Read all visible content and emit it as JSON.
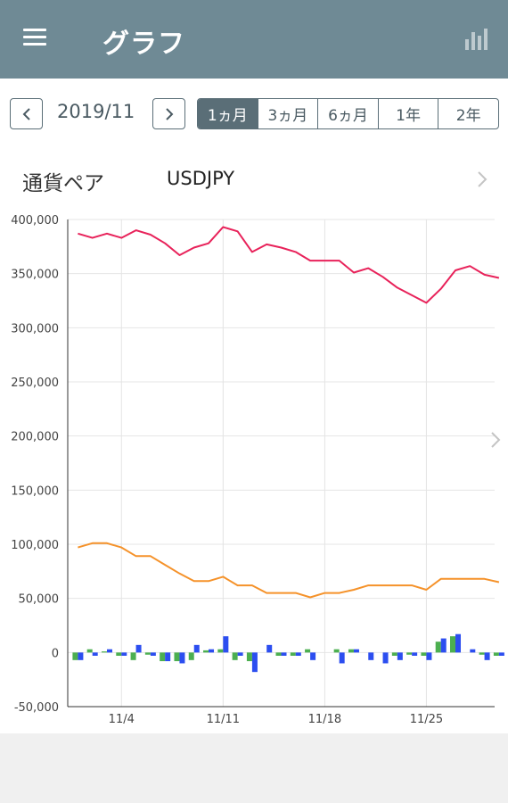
{
  "header": {
    "title": "グラフ",
    "menu_icon": "menu-icon",
    "chart_icon": "bar-chart-icon"
  },
  "nav": {
    "prev_icon": "chevron-left-icon",
    "next_icon": "chevron-right-icon",
    "month": "2019/11"
  },
  "periods": [
    {
      "label": "1ヵ月",
      "active": true
    },
    {
      "label": "3ヵ月",
      "active": false
    },
    {
      "label": "6ヵ月",
      "active": false
    },
    {
      "label": "1年",
      "active": false
    },
    {
      "label": "2年",
      "active": false
    }
  ],
  "pair": {
    "label": "通貨ペア",
    "value": "USDJPY"
  },
  "chart_data": {
    "type": "line",
    "ylim": [
      -50000,
      400000
    ],
    "yticks": [
      -50000,
      0,
      50000,
      100000,
      150000,
      200000,
      250000,
      300000,
      350000,
      400000
    ],
    "ytick_labels": [
      "-50,000",
      "0",
      "50,000",
      "100,000",
      "150,000",
      "200,000",
      "250,000",
      "300,000",
      "350,000",
      "400,000"
    ],
    "xlim": [
      0.3,
      29.7
    ],
    "xticks": [
      4,
      11,
      18,
      25
    ],
    "xtick_labels": [
      "11/4",
      "11/11",
      "11/18",
      "11/25"
    ],
    "grid": true,
    "colors": {
      "red": "#e8225a",
      "orange": "#f5922a",
      "green": "#4caf50",
      "blue": "#2c4ef0"
    },
    "series": [
      {
        "color": "red",
        "x": [
          1,
          2,
          3,
          4,
          5,
          6,
          7,
          8,
          9,
          10,
          11,
          12,
          13,
          14,
          15,
          16,
          17,
          18,
          19,
          20,
          21,
          22,
          23,
          24,
          25,
          26,
          27,
          28,
          29,
          30
        ],
        "values": [
          387000,
          383000,
          387000,
          383000,
          390000,
          386000,
          378000,
          367000,
          374000,
          378000,
          393000,
          389000,
          370000,
          377000,
          374000,
          370000,
          362000,
          362000,
          362000,
          351000,
          355000,
          347000,
          337000,
          330000,
          323000,
          336000,
          353000,
          357000,
          349000,
          346000
        ]
      },
      {
        "color": "orange",
        "x": [
          1,
          2,
          3,
          4,
          5,
          6,
          7,
          8,
          9,
          10,
          11,
          12,
          13,
          14,
          15,
          16,
          17,
          18,
          19,
          20,
          21,
          22,
          23,
          24,
          25,
          26,
          27,
          28,
          29,
          30
        ],
        "values": [
          97000,
          101000,
          101000,
          97000,
          89000,
          89000,
          81000,
          73000,
          66000,
          66000,
          70000,
          62000,
          62000,
          55000,
          55000,
          55000,
          51000,
          55000,
          55000,
          58000,
          62000,
          62000,
          62000,
          62000,
          58000,
          68000,
          68000,
          68000,
          68000,
          65000
        ]
      },
      {
        "type": "bar",
        "color": "green",
        "x": [
          1,
          2,
          3,
          4,
          5,
          6,
          7,
          8,
          9,
          10,
          11,
          12,
          13,
          14,
          15,
          16,
          17,
          18,
          19,
          20,
          21,
          22,
          23,
          24,
          25,
          26,
          27,
          28,
          29,
          30
        ],
        "values": [
          -7000,
          3000,
          1000,
          -3000,
          -7000,
          -2000,
          -8000,
          -8000,
          -7000,
          2000,
          3000,
          -7000,
          -8000,
          0,
          -3000,
          -3000,
          3000,
          0,
          3000,
          3000,
          0,
          0,
          -3000,
          -2000,
          -3000,
          10000,
          15000,
          0,
          -2000,
          -3000
        ]
      },
      {
        "type": "bar",
        "color": "blue",
        "x": [
          1,
          2,
          3,
          4,
          5,
          6,
          7,
          8,
          9,
          10,
          11,
          12,
          13,
          14,
          15,
          16,
          17,
          18,
          19,
          20,
          21,
          22,
          23,
          24,
          25,
          26,
          27,
          28,
          29,
          30
        ],
        "values": [
          -7000,
          -3000,
          3000,
          -3000,
          7000,
          -3000,
          -8000,
          -10000,
          7000,
          3000,
          15000,
          -3000,
          -18000,
          7000,
          -3000,
          -3000,
          -7000,
          0,
          -10000,
          3000,
          -7000,
          -10000,
          -7000,
          -3000,
          -7000,
          13000,
          17000,
          3000,
          -7000,
          -3000
        ]
      }
    ]
  }
}
